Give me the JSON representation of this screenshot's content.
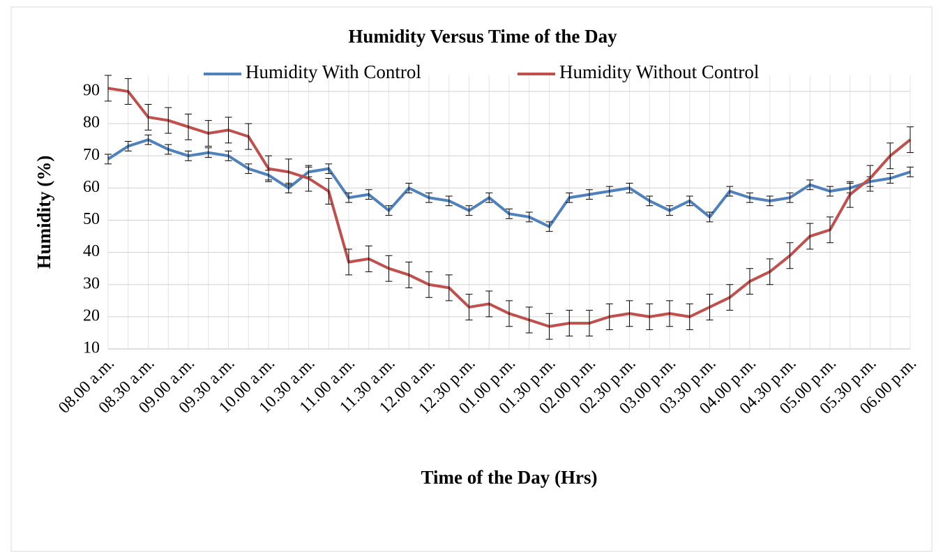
{
  "chart_data": {
    "type": "line",
    "title": "Humidity Versus Time of the Day",
    "x_label": "Time of the Day (Hrs)",
    "y_label": "Humidity (%)",
    "categories": [
      "08.00 a.m.",
      null,
      "08.30 a.m.",
      null,
      "09.00 a.m.",
      null,
      "09.30 a.m.",
      null,
      "10.00 a.m.",
      null,
      "10.30 a.m.",
      null,
      "11.00 a.m.",
      null,
      "11.30 a.m.",
      null,
      "12.00 a.m.",
      null,
      "12.30 p.m.",
      null,
      "01.00 p.m.",
      null,
      "01.30 p.m.",
      null,
      "02.00 p.m.",
      null,
      "02.30 p.m.",
      null,
      "03.00 p.m.",
      null,
      "03.30 p.m.",
      null,
      "04.00 p.m.",
      null,
      "04.30 p.m.",
      null,
      "05.00 p.m.",
      null,
      "05.30 p.m.",
      null,
      "06.00 p.m."
    ],
    "series": [
      {
        "name": "Humidity With Control",
        "color": "#4f81bd",
        "values": [
          69,
          73,
          75,
          72,
          70,
          71,
          70,
          66,
          64,
          60,
          65,
          66,
          57,
          58,
          53,
          60,
          57,
          56,
          53,
          57,
          52,
          51,
          48,
          57,
          58,
          59,
          60,
          56,
          53,
          56,
          51,
          59,
          57,
          56,
          57,
          61,
          59,
          60,
          62,
          63,
          65
        ],
        "errors": [
          1.5,
          1.5,
          1.5,
          1.5,
          1.5,
          1.5,
          1.5,
          1.5,
          1.5,
          1.5,
          1.5,
          1.5,
          1.5,
          1.5,
          1.5,
          1.5,
          1.5,
          1.5,
          1.5,
          1.5,
          1.5,
          1.5,
          1.5,
          1.5,
          1.5,
          1.5,
          1.5,
          1.5,
          1.5,
          1.5,
          1.5,
          1.5,
          1.5,
          1.5,
          1.5,
          1.5,
          1.5,
          1.5,
          1.5,
          1.5,
          1.5
        ]
      },
      {
        "name": "Humidity Without Control",
        "color": "#c0504d",
        "values": [
          91,
          90,
          82,
          81,
          79,
          77,
          78,
          76,
          66,
          65,
          63,
          59,
          37,
          38,
          35,
          33,
          30,
          29,
          23,
          24,
          21,
          19,
          17,
          18,
          18,
          20,
          21,
          20,
          21,
          20,
          23,
          26,
          31,
          34,
          39,
          45,
          47,
          58,
          63,
          70,
          75
        ],
        "errors": [
          4,
          4,
          4,
          4,
          4,
          4,
          4,
          4,
          4,
          4,
          4,
          4,
          4,
          4,
          4,
          4,
          4,
          4,
          4,
          4,
          4,
          4,
          4,
          4,
          4,
          4,
          4,
          4,
          4,
          4,
          4,
          4,
          4,
          4,
          4,
          4,
          4,
          4,
          4,
          4,
          4
        ]
      }
    ],
    "ylim": [
      10,
      95
    ],
    "yticks": [
      10,
      20,
      30,
      40,
      50,
      60,
      70,
      80,
      90
    ],
    "grid": true,
    "legend": "top"
  }
}
